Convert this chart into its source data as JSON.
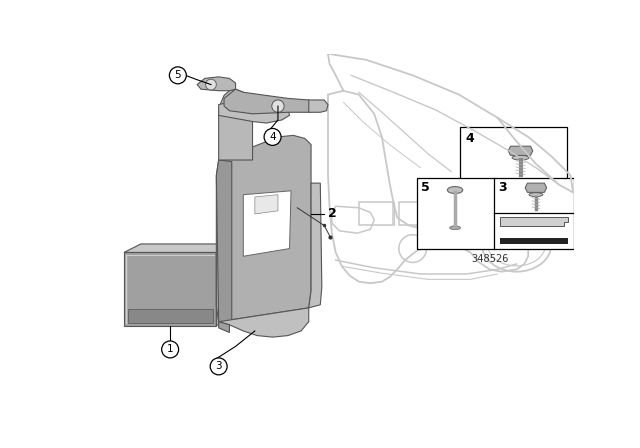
{
  "background_color": "#ffffff",
  "diagram_number": "348526",
  "fig_width": 6.4,
  "fig_height": 4.48,
  "dpi": 100,
  "part_color_light": "#c0c0c0",
  "part_color_mid": "#a8a8a8",
  "part_color_dark": "#888888",
  "car_color": "#c8c8c8",
  "line_color": "#000000"
}
